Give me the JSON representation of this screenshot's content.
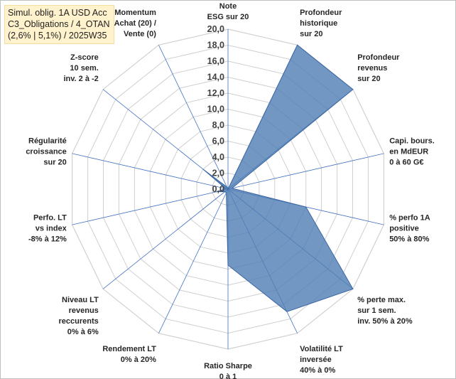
{
  "header": {
    "title_lines": [
      "Simul. oblig. 1A USD Acc",
      "C3_Obligations / 4_OTAN",
      "(2,6% | 5,1%) / 2025W35"
    ]
  },
  "chart_data": {
    "type": "radar",
    "rmin": 0,
    "rmax": 20,
    "tick_step": 2,
    "tick_labels": [
      "0,0",
      "2,0",
      "4,0",
      "6,0",
      "8,0",
      "10,0",
      "12,0",
      "14,0",
      "16,0",
      "18,0",
      "20,0"
    ],
    "axes": [
      {
        "label_lines": [
          "Note",
          "ESG sur 20"
        ]
      },
      {
        "label_lines": [
          "Profondeur",
          "historique",
          "sur 20"
        ]
      },
      {
        "label_lines": [
          "Profondeur",
          "revenus",
          "sur 20"
        ]
      },
      {
        "label_lines": [
          "Capi. bours.",
          "en MdEUR",
          "0 à 60 G€"
        ]
      },
      {
        "label_lines": [
          "% perfo 1A",
          "positive",
          "50% à 80%"
        ]
      },
      {
        "label_lines": [
          "% perte max.",
          "sur 1 sem.",
          "inv. 50% à 20%"
        ]
      },
      {
        "label_lines": [
          "Volatilité LT",
          "inversée",
          "40% à 0%"
        ]
      },
      {
        "label_lines": [
          "Ratio Sharpe",
          "0 à 1"
        ]
      },
      {
        "label_lines": [
          "Rendement LT",
          "0% à 20%"
        ]
      },
      {
        "label_lines": [
          "Niveau LT",
          "revenus",
          "reccurents",
          "0% à 6%"
        ]
      },
      {
        "label_lines": [
          "Perfo. LT",
          "vs index",
          "-8% à 12%"
        ]
      },
      {
        "label_lines": [
          "Régularité",
          "croissance",
          "sur 20"
        ]
      },
      {
        "label_lines": [
          "Z-score",
          "10 sem.",
          "inv. 2 à -2"
        ]
      },
      {
        "label_lines": [
          "Momentum",
          "Achat (20) /",
          "Vente (0)"
        ]
      }
    ],
    "series": [
      {
        "values": [
          0,
          20,
          20,
          0.5,
          10,
          20,
          17,
          9.5,
          0.5,
          0.5,
          1.5,
          0.3,
          4,
          0.3
        ],
        "color": "#4f7db3"
      }
    ],
    "grid": true,
    "spoke_color": "#4472c4",
    "grid_color": "#d0d0d0"
  }
}
